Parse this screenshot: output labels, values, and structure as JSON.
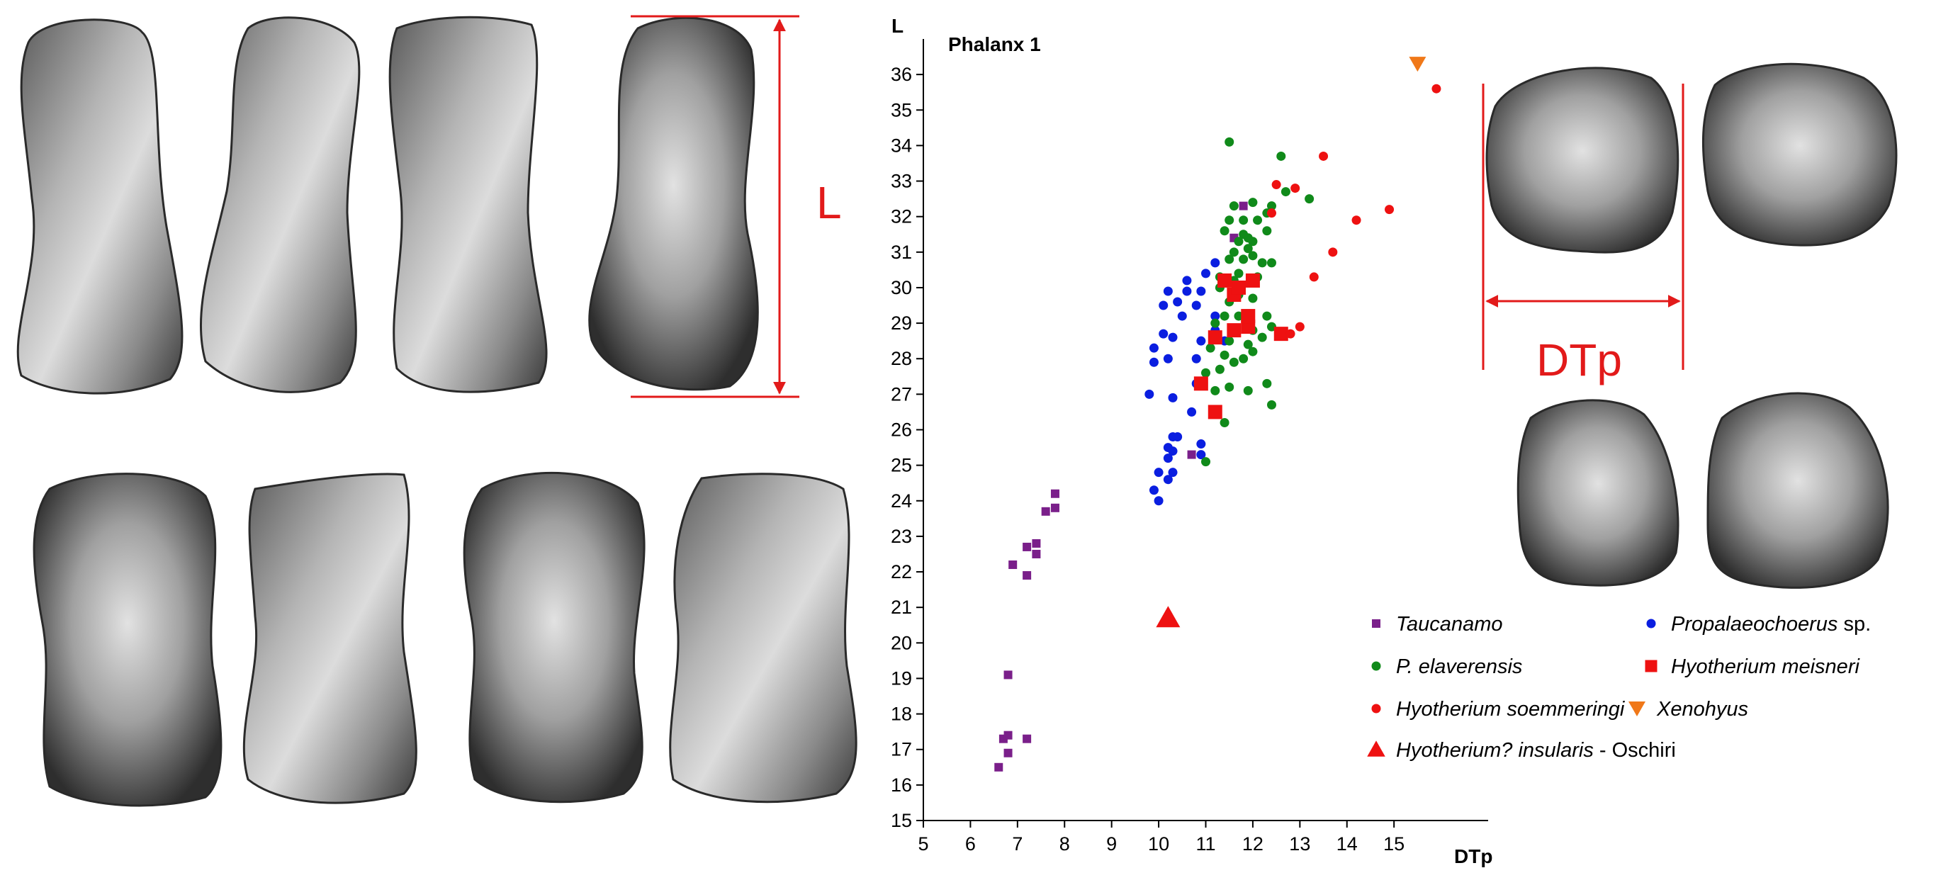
{
  "colors": {
    "taucanamo": "#7a1f8a",
    "propalaeochoerus": "#0a1ee0",
    "elaverensis": "#108a1a",
    "meisneri": "#ee1111",
    "soemmeringi": "#ee1111",
    "xenohyus": "#f07818",
    "insularis": "#ee1111",
    "annotation": "#e21a1a"
  },
  "figure": {
    "label_l": "L",
    "label_dtp": "DTp",
    "left_photos": [
      "phalanx-dorsal-1",
      "phalanx-dorsal-2",
      "phalanx-dorsal-3",
      "phalanx-dorsal-4",
      "phalanx-ventral-1",
      "phalanx-ventral-2",
      "phalanx-ventral-3",
      "phalanx-ventral-4"
    ],
    "right_photos": [
      "proximal-view-1",
      "proximal-view-2",
      "proximal-view-3",
      "proximal-view-4"
    ]
  },
  "chart_data": {
    "type": "scatter",
    "title": "Phalanx 1",
    "xlabel": "DTp",
    "ylabel": "L",
    "xlim": [
      5,
      17
    ],
    "ylim": [
      15,
      37
    ],
    "x_ticks": [
      "5",
      "6",
      "7",
      "8",
      "9",
      "10",
      "11",
      "12",
      "13",
      "14",
      "15"
    ],
    "y_ticks": [
      "15",
      "16",
      "17",
      "18",
      "19",
      "20",
      "21",
      "22",
      "23",
      "24",
      "25",
      "26",
      "27",
      "28",
      "29",
      "30",
      "31",
      "32",
      "33",
      "34",
      "35",
      "36"
    ],
    "grid": false,
    "legend_position": "bottom-right",
    "series": [
      {
        "key": "taucanamo",
        "name": "Taucanamo",
        "name_suffix": "",
        "marker": "small-square",
        "points": [
          [
            6.6,
            16.5
          ],
          [
            6.8,
            16.9
          ],
          [
            6.7,
            17.3
          ],
          [
            6.8,
            17.4
          ],
          [
            7.2,
            17.3
          ],
          [
            6.8,
            19.1
          ],
          [
            6.9,
            22.2
          ],
          [
            7.2,
            21.9
          ],
          [
            7.2,
            22.7
          ],
          [
            7.4,
            22.5
          ],
          [
            7.4,
            22.8
          ],
          [
            7.6,
            23.7
          ],
          [
            7.8,
            23.8
          ],
          [
            7.8,
            24.2
          ],
          [
            10.7,
            25.3
          ],
          [
            11.6,
            31.4
          ],
          [
            11.8,
            32.3
          ]
        ]
      },
      {
        "key": "propalaeochoerus",
        "name": "Propalaeochoerus",
        "name_suffix": " sp.",
        "marker": "circle",
        "points": [
          [
            9.9,
            24.3
          ],
          [
            10.0,
            24.0
          ],
          [
            10.0,
            24.8
          ],
          [
            10.2,
            24.6
          ],
          [
            10.2,
            25.2
          ],
          [
            10.2,
            25.5
          ],
          [
            10.3,
            24.8
          ],
          [
            10.3,
            25.4
          ],
          [
            10.3,
            25.8
          ],
          [
            10.4,
            25.8
          ],
          [
            10.9,
            25.3
          ],
          [
            10.9,
            25.6
          ],
          [
            10.7,
            26.5
          ],
          [
            9.8,
            27.0
          ],
          [
            10.3,
            26.9
          ],
          [
            10.8,
            27.3
          ],
          [
            9.9,
            27.9
          ],
          [
            10.2,
            28.0
          ],
          [
            10.8,
            28.0
          ],
          [
            9.9,
            28.3
          ],
          [
            10.1,
            28.7
          ],
          [
            10.3,
            28.6
          ],
          [
            10.5,
            29.2
          ],
          [
            10.1,
            29.5
          ],
          [
            10.2,
            29.9
          ],
          [
            10.4,
            29.6
          ],
          [
            10.6,
            29.9
          ],
          [
            10.8,
            29.5
          ],
          [
            10.9,
            29.9
          ],
          [
            10.6,
            30.2
          ],
          [
            11.0,
            30.4
          ],
          [
            11.2,
            30.7
          ],
          [
            11.2,
            29.2
          ],
          [
            11.4,
            28.5
          ],
          [
            11.2,
            28.8
          ],
          [
            10.9,
            28.5
          ]
        ]
      },
      {
        "key": "elaverensis",
        "name": "P. elaverensis",
        "name_suffix": "",
        "marker": "circle",
        "points": [
          [
            11.0,
            25.1
          ],
          [
            11.4,
            26.2
          ],
          [
            11.2,
            27.1
          ],
          [
            11.5,
            27.2
          ],
          [
            11.9,
            27.1
          ],
          [
            12.3,
            27.3
          ],
          [
            12.4,
            26.7
          ],
          [
            11.0,
            27.6
          ],
          [
            11.3,
            27.7
          ],
          [
            11.6,
            27.9
          ],
          [
            11.8,
            28.0
          ],
          [
            12.0,
            28.2
          ],
          [
            11.4,
            28.1
          ],
          [
            11.1,
            28.3
          ],
          [
            11.5,
            28.5
          ],
          [
            11.9,
            28.4
          ],
          [
            12.2,
            28.6
          ],
          [
            12.4,
            28.9
          ],
          [
            11.6,
            28.8
          ],
          [
            12.0,
            28.8
          ],
          [
            11.2,
            29.0
          ],
          [
            11.4,
            29.2
          ],
          [
            11.7,
            29.2
          ],
          [
            12.3,
            29.2
          ],
          [
            11.5,
            29.6
          ],
          [
            11.7,
            29.8
          ],
          [
            12.0,
            29.7
          ],
          [
            11.3,
            30.0
          ],
          [
            11.6,
            30.2
          ],
          [
            12.1,
            30.3
          ],
          [
            11.3,
            30.3
          ],
          [
            11.5,
            30.8
          ],
          [
            11.8,
            30.8
          ],
          [
            12.2,
            30.7
          ],
          [
            12.4,
            30.7
          ],
          [
            11.6,
            31.0
          ],
          [
            11.9,
            31.1
          ],
          [
            11.7,
            31.3
          ],
          [
            12.0,
            31.3
          ],
          [
            11.8,
            31.5
          ],
          [
            11.4,
            31.6
          ],
          [
            11.9,
            31.4
          ],
          [
            12.3,
            31.6
          ],
          [
            11.5,
            31.9
          ],
          [
            11.8,
            31.9
          ],
          [
            12.1,
            31.9
          ],
          [
            11.6,
            32.3
          ],
          [
            12.4,
            32.3
          ],
          [
            11.5,
            34.1
          ],
          [
            12.7,
            32.7
          ],
          [
            12.6,
            33.7
          ],
          [
            13.2,
            32.5
          ],
          [
            12.0,
            32.4
          ],
          [
            12.3,
            32.1
          ],
          [
            11.7,
            30.4
          ],
          [
            12.0,
            30.9
          ]
        ]
      },
      {
        "key": "meisneri",
        "name": "Hyotherium meisneri",
        "name_suffix": "",
        "marker": "square",
        "points": [
          [
            11.2,
            26.5
          ],
          [
            10.9,
            27.3
          ],
          [
            11.2,
            28.6
          ],
          [
            11.6,
            28.8
          ],
          [
            11.9,
            28.9
          ],
          [
            11.9,
            29.2
          ],
          [
            12.6,
            28.7
          ],
          [
            11.6,
            29.8
          ],
          [
            11.7,
            30.0
          ],
          [
            11.4,
            30.2
          ],
          [
            12.0,
            30.2
          ]
        ]
      },
      {
        "key": "soemmeringi",
        "name": "Hyotherium soemmeringi",
        "name_suffix": "",
        "marker": "circle",
        "points": [
          [
            12.4,
            32.1
          ],
          [
            12.5,
            32.9
          ],
          [
            12.9,
            32.8
          ],
          [
            13.5,
            33.7
          ],
          [
            14.9,
            32.2
          ],
          [
            14.2,
            31.9
          ],
          [
            13.7,
            31.0
          ],
          [
            13.3,
            30.3
          ],
          [
            13.0,
            28.9
          ],
          [
            12.8,
            28.7
          ],
          [
            15.9,
            35.6
          ]
        ]
      },
      {
        "key": "xenohyus",
        "name": "Xenohyus",
        "name_suffix": "",
        "marker": "triangle-down",
        "points": [
          [
            15.5,
            36.3
          ]
        ]
      },
      {
        "key": "insularis",
        "name": "Hyotherium? insularis",
        "name_suffix": " - Oschiri",
        "marker": "triangle-up",
        "points": [
          [
            10.2,
            20.7
          ]
        ]
      }
    ]
  }
}
